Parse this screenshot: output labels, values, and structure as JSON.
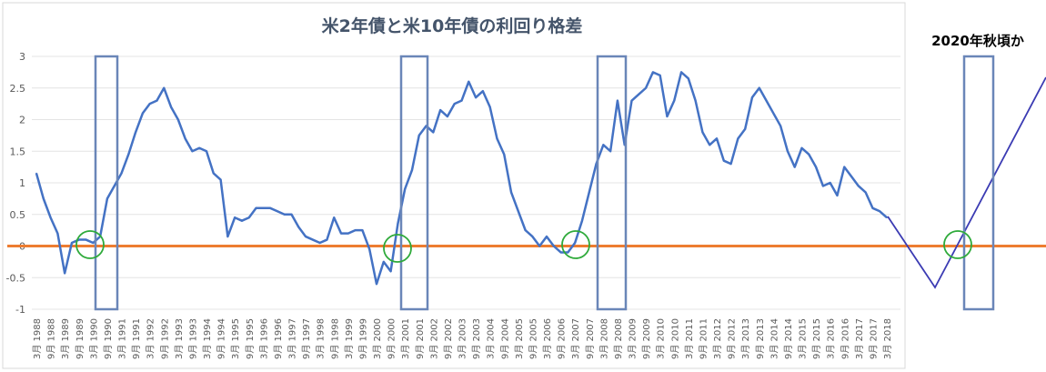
{
  "chart_data": {
    "type": "line",
    "title": "米2年債と米10年債の利回り格差",
    "annotation": "2020年秋頃か",
    "ylim": [
      -1,
      3
    ],
    "yticks": [
      "3",
      "2.5",
      "2",
      "1.5",
      "1",
      "0.5",
      "0",
      "-0.5",
      "-1"
    ],
    "grid": true,
    "legend": "none",
    "x_start": "1988-03",
    "x_step_months": 3,
    "x_tick_labels": [
      "3月 1988",
      "9月 1988",
      "3月 1989",
      "9月 1989",
      "3月 1990",
      "9月 1990",
      "3月 1991",
      "9月 1991",
      "3月 1992",
      "9月 1992",
      "3月 1993",
      "9月 1993",
      "3月 1994",
      "9月 1994",
      "3月 1995",
      "9月 1995",
      "3月 1996",
      "9月 1996",
      "3月 1997",
      "9月 1997",
      "3月 1998",
      "9月 1998",
      "3月 1999",
      "9月 1999",
      "3月 2000",
      "9月 2000",
      "3月 2001",
      "9月 2001",
      "3月 2002",
      "9月 2002",
      "3月 2003",
      "9月 2003",
      "3月 2004",
      "9月 2004",
      "3月 2005",
      "9月 2005",
      "3月 2006",
      "9月 2006",
      "3月 2007",
      "9月 2007",
      "3月 2008",
      "9月 2008",
      "3月 2009",
      "9月 2009",
      "3月 2010",
      "9月 2010",
      "3月 2011",
      "9月 2011",
      "3月 2012",
      "9月 2012",
      "3月 2013",
      "9月 2013",
      "3月 2014",
      "9月 2014",
      "3月 2015",
      "9月 2015",
      "3月 2016",
      "9月 2016",
      "3月 2017",
      "9月 2017",
      "3月 2018"
    ],
    "series": [
      {
        "color": "#4472c4",
        "values": [
          1.15,
          0.75,
          0.45,
          0.2,
          -0.43,
          0.05,
          0.1,
          0.1,
          0.05,
          0.15,
          0.75,
          0.95,
          1.15,
          1.45,
          1.8,
          2.1,
          2.25,
          2.3,
          2.5,
          2.2,
          2.0,
          1.7,
          1.5,
          1.55,
          1.5,
          1.15,
          1.05,
          0.15,
          0.45,
          0.4,
          0.45,
          0.6,
          0.6,
          0.6,
          0.55,
          0.5,
          0.5,
          0.3,
          0.15,
          0.1,
          0.05,
          0.1,
          0.45,
          0.2,
          0.2,
          0.25,
          0.25,
          -0.05,
          -0.6,
          -0.25,
          -0.4,
          0.35,
          0.9,
          1.2,
          1.75,
          1.9,
          1.8,
          2.15,
          2.05,
          2.25,
          2.3,
          2.6,
          2.35,
          2.45,
          2.2,
          1.7,
          1.45,
          0.85,
          0.55,
          0.25,
          0.15,
          0.0,
          0.15,
          0.0,
          -0.1,
          -0.1,
          0.05,
          0.4,
          0.85,
          1.3,
          1.6,
          1.5,
          2.3,
          1.6,
          2.3,
          2.4,
          2.5,
          2.75,
          2.7,
          2.05,
          2.3,
          2.75,
          2.65,
          2.3,
          1.8,
          1.6,
          1.7,
          1.35,
          1.3,
          1.7,
          1.85,
          2.35,
          2.5,
          2.3,
          2.1,
          1.9,
          1.5,
          1.25,
          1.55,
          1.45,
          1.25,
          0.95,
          1.0,
          0.8,
          1.25,
          1.1,
          0.95,
          0.85,
          0.6,
          0.55,
          0.45
        ]
      },
      {
        "color": "#ed7d31",
        "values": [
          0
        ]
      }
    ],
    "projection_color": "#3b3bb3",
    "highlight_box_color": "#6a86b8",
    "highlight_circle_color": "#2eaa3a"
  }
}
